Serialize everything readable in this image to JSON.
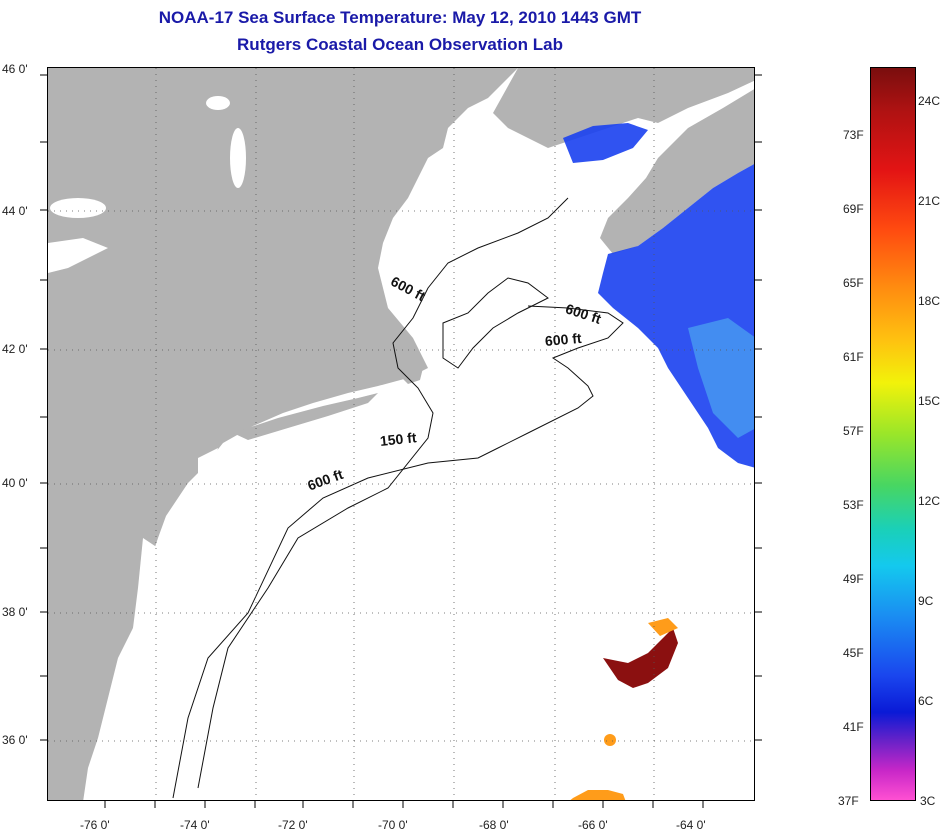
{
  "title": {
    "line1": "NOAA-17 Sea Surface Temperature:  May 12, 2010 1443 GMT",
    "line2": "Rutgers Coastal Ocean Observation Lab"
  },
  "map": {
    "lat_labels": [
      "46 0'",
      "44 0'",
      "42 0'",
      "40 0'",
      "38 0'",
      "36 0'"
    ],
    "lon_labels": [
      "-76 0'",
      "-74 0'",
      "-72 0'",
      "-70 0'",
      "-68 0'",
      "-66 0'",
      "-64 0'"
    ],
    "contour_labels": [
      "600 ft",
      "600 ft",
      "600 ft",
      "150 ft",
      "600 ft"
    ],
    "colors": {
      "land": "#b3b3b3",
      "ocean": "#ffffff",
      "sst_cold": "#1a40f0",
      "sst_warm": "#8b1010"
    }
  },
  "colorbar": {
    "fahrenheit": [
      "73F",
      "69F",
      "65F",
      "61F",
      "57F",
      "53F",
      "49F",
      "45F",
      "41F",
      "37F"
    ],
    "celsius": [
      "24C",
      "21C",
      "18C",
      "15C",
      "12C",
      "9C",
      "6C",
      "3C"
    ]
  }
}
